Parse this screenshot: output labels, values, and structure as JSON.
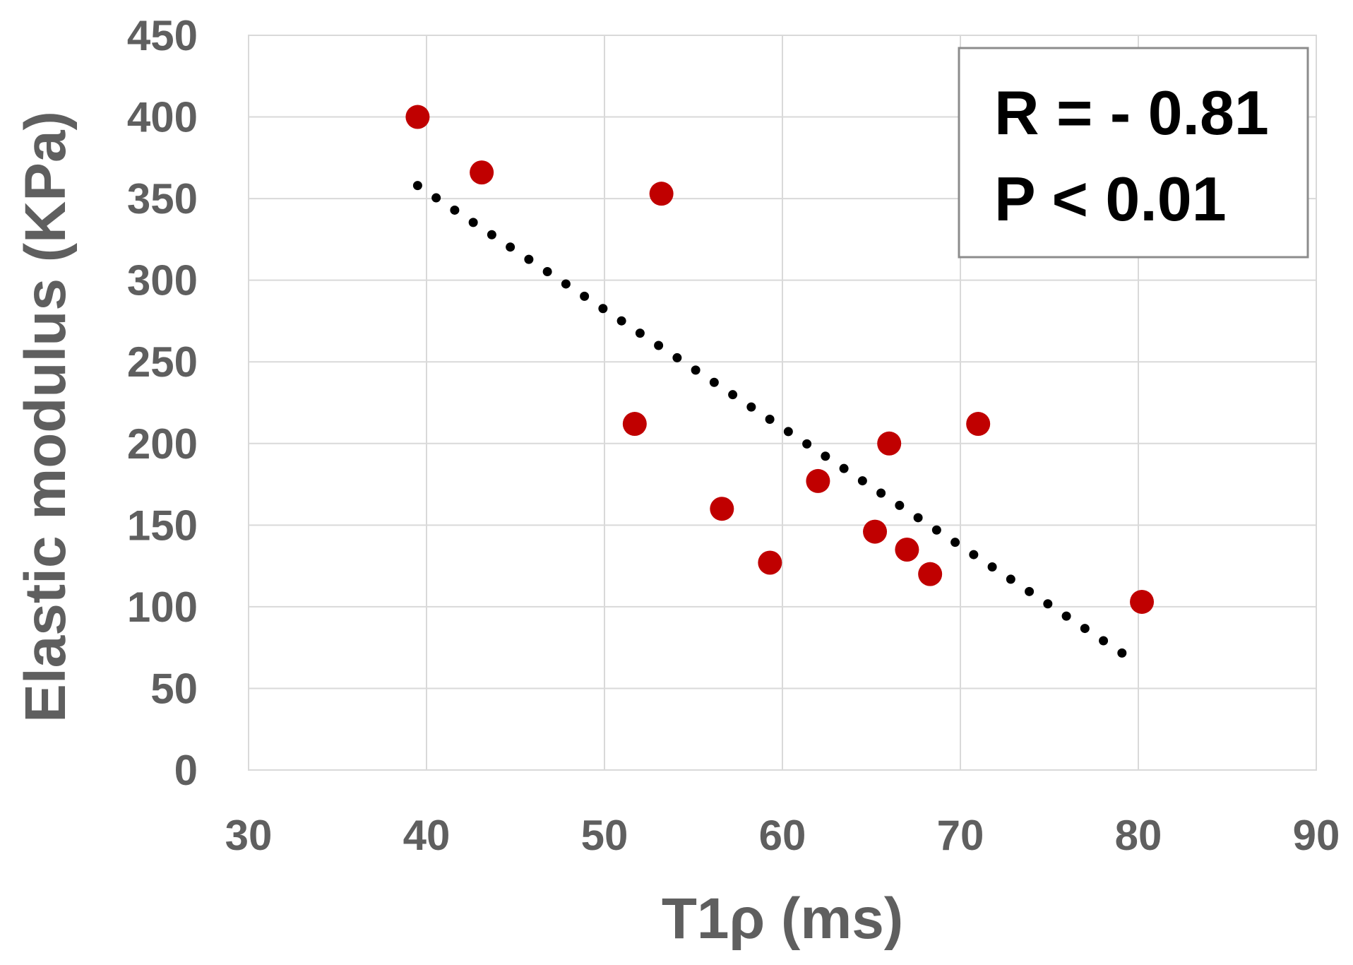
{
  "chart_data": {
    "type": "scatter",
    "title": "",
    "xlabel": "T1ρ (ms)",
    "ylabel": "Elastic modulus (KPa)",
    "xlim": [
      30,
      90
    ],
    "ylim": [
      0,
      450
    ],
    "xticks": [
      "30",
      "40",
      "50",
      "60",
      "70",
      "80",
      "90"
    ],
    "yticks": [
      "0",
      "50",
      "100",
      "150",
      "200",
      "250",
      "300",
      "350",
      "400",
      "450"
    ],
    "grid": true,
    "points": [
      {
        "x": 39.5,
        "y": 400
      },
      {
        "x": 43.1,
        "y": 366
      },
      {
        "x": 51.7,
        "y": 212
      },
      {
        "x": 53.2,
        "y": 353
      },
      {
        "x": 56.6,
        "y": 160
      },
      {
        "x": 59.3,
        "y": 127
      },
      {
        "x": 62.0,
        "y": 177
      },
      {
        "x": 65.2,
        "y": 146
      },
      {
        "x": 66.0,
        "y": 200
      },
      {
        "x": 67.0,
        "y": 135
      },
      {
        "x": 68.3,
        "y": 120
      },
      {
        "x": 71.0,
        "y": 212
      },
      {
        "x": 80.2,
        "y": 103
      }
    ],
    "trendline": {
      "style": "dotted",
      "x_start": 39.5,
      "y_start": 358,
      "x_end": 80.0,
      "y_end": 65
    },
    "annotation": {
      "line1": "R = - 0.81",
      "line2": "P < 0.01",
      "position": "top-right"
    },
    "colors": {
      "points": "#c00000",
      "trendline": "#000000",
      "grid": "#d9d9d9",
      "text": "#5f5f5f"
    }
  }
}
